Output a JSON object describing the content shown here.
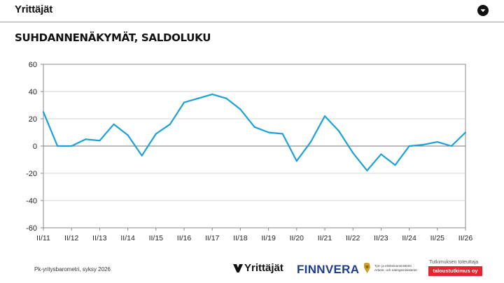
{
  "header": {
    "brand": "Yrittäjät",
    "menu_icon": "chevron-down-circle-icon"
  },
  "page_title": "SUHDANNENÄKYMÄT, SALDOLUKU",
  "chart_data": {
    "type": "line",
    "title": "",
    "xlabel": "",
    "ylabel": "",
    "ylim": [
      -60,
      60
    ],
    "yticks": [
      60,
      40,
      20,
      0,
      -20,
      -40,
      -60
    ],
    "x_tick_labels": [
      "II/11",
      "II/12",
      "II/13",
      "II/14",
      "II/15",
      "II/16",
      "II/17",
      "II/18",
      "II/19",
      "II/20",
      "II/21",
      "II/22",
      "II/23",
      "II/24",
      "II/25",
      "II/26"
    ],
    "grid": "horizontal",
    "zero_line": true,
    "line_color": "#1ba1d8",
    "series": [
      {
        "values": [
          25,
          0,
          0,
          5,
          4,
          16,
          8,
          -7,
          9,
          16,
          32,
          35,
          38,
          35,
          27,
          14,
          10,
          9,
          -11,
          3,
          22,
          11,
          -5,
          -18,
          -6,
          -14,
          0,
          1,
          3,
          0,
          10
        ]
      }
    ]
  },
  "footer": {
    "note": "Pk-yritysbarometri, syksy 2026",
    "logos": {
      "yrittajat": "Yrittäjät",
      "finnvera": "FINNVERA",
      "ministry_line1": "Työ- ja elinkeinoministeriö",
      "ministry_line2": "Arbets- och näringsministeriet"
    },
    "implementer_label": "Tutkimuksen toteuttaja",
    "implementer_name": "taloustutkimus oy"
  }
}
